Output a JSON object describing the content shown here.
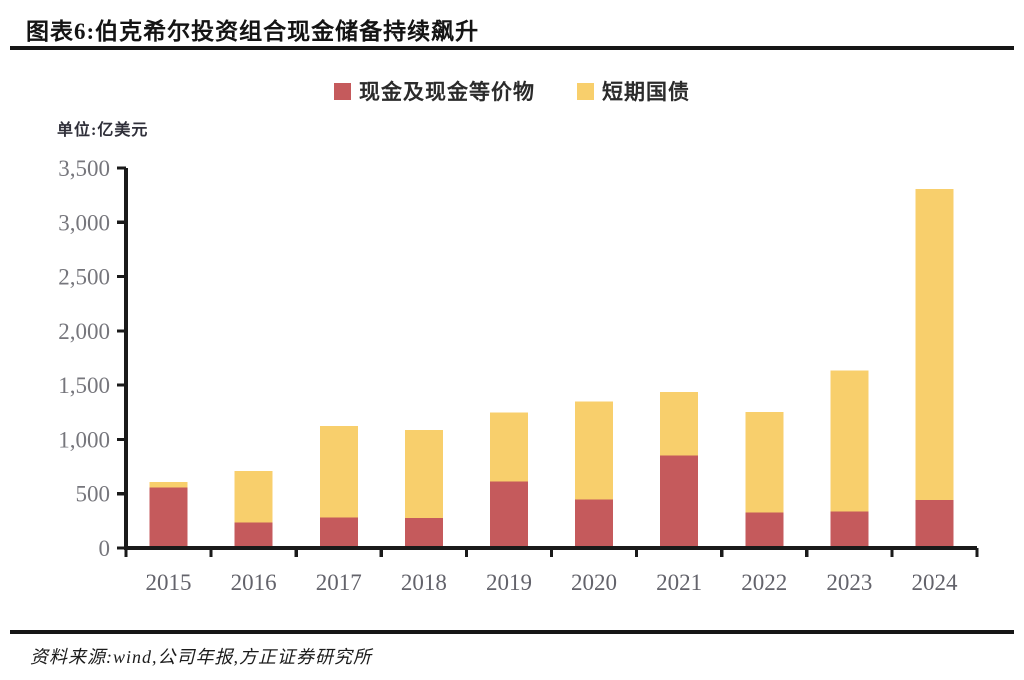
{
  "page": {
    "title": "图表6:伯克希尔投资组合现金储备持续飙升",
    "unit_label": "单位:亿美元",
    "source_note": "资料来源:wind,公司年报,方正证券研究所"
  },
  "colors": {
    "cash_red": "#C55A5C",
    "tbill_yellow": "#F8CF6C",
    "axis_black": "#1a1a1a",
    "ytick_gray": "#76767c",
    "xtick_gray": "#63636b"
  },
  "chart_data": {
    "type": "bar",
    "stacked": true,
    "title": "图表6:伯克希尔投资组合现金储备持续飙升",
    "ylabel": "单位:亿美元",
    "categories": [
      "2015",
      "2016",
      "2017",
      "2018",
      "2019",
      "2020",
      "2021",
      "2022",
      "2023",
      "2024"
    ],
    "series": [
      {
        "name": "现金及现金等价物",
        "color": "#C55A5C",
        "values": [
          558,
          235,
          282,
          276,
          612,
          446,
          853,
          325,
          337,
          443
        ]
      },
      {
        "name": "短期国债",
        "color": "#F8CF6C",
        "values": [
          50,
          472,
          843,
          813,
          637,
          902,
          585,
          926,
          1296,
          2865
        ]
      }
    ],
    "totals": [
      608,
      707,
      1125,
      1089,
      1249,
      1348,
      1438,
      1251,
      1633,
      3308
    ],
    "ylim": [
      0,
      3500
    ],
    "ytick_step": 500,
    "ytick_labels": [
      "0",
      "500",
      "1,000",
      "1,500",
      "2,000",
      "2,500",
      "3,000",
      "3,500"
    ],
    "grid": false,
    "legend_position": "top"
  }
}
